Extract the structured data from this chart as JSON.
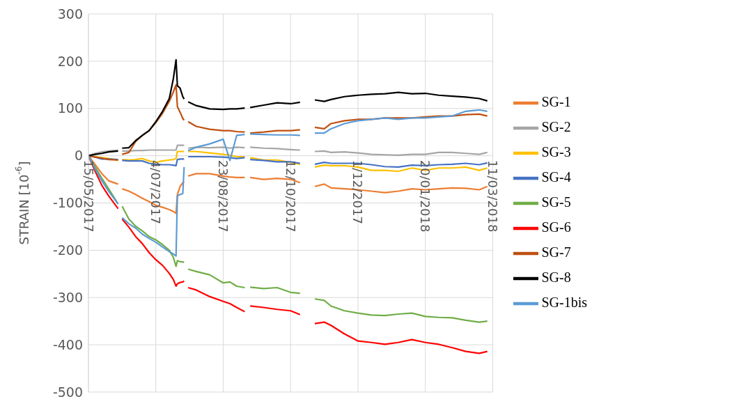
{
  "chart_data": {
    "type": "line",
    "ylabel": "STRAIN [10$^{-6}$]",
    "x": [
      "2017-05-15",
      "2017-05-20",
      "2017-05-25",
      "2017-05-30",
      "2017-06-06",
      "2017-06-07",
      "2017-06-09",
      "2017-06-14",
      "2017-06-19",
      "2017-06-24",
      "2017-06-29",
      "2017-07-04",
      "2017-07-09",
      "2017-07-14",
      "2017-07-17",
      "2017-07-19",
      "2017-07-20",
      "2017-07-22",
      "2017-07-24",
      "2017-07-25",
      "2017-07-26",
      "2017-07-28",
      "2017-08-03",
      "2017-08-13",
      "2017-08-23",
      "2017-08-28",
      "2017-09-02",
      "2017-09-08",
      "2017-09-10",
      "2017-09-12",
      "2017-09-22",
      "2017-10-02",
      "2017-10-12",
      "2017-10-19",
      "2017-10-24",
      "2017-10-30",
      "2017-11-06",
      "2017-11-11",
      "2017-11-21",
      "2017-12-01",
      "2017-12-11",
      "2017-12-21",
      "2017-12-31",
      "2018-01-10",
      "2018-01-20",
      "2018-01-30",
      "2018-02-09",
      "2018-02-19",
      "2018-03-01",
      "2018-03-07"
    ],
    "series": [
      {
        "name": "SG-1",
        "color": "#ed7d31",
        "values": [
          0,
          -19,
          -38,
          -53,
          -60,
          null,
          -70,
          -75,
          -82,
          -90,
          -97,
          -105,
          -109,
          -114,
          -118,
          -122,
          -82,
          -65,
          -57,
          -55,
          null,
          -43,
          -38,
          -38,
          -43,
          -45,
          -46,
          -46,
          null,
          -46,
          -50,
          -48,
          -50,
          -57,
          null,
          -65,
          -60,
          -68,
          -70,
          -72,
          -75,
          -78,
          -75,
          -70,
          -72,
          -70,
          -68,
          -69,
          -72,
          -65
        ]
      },
      {
        "name": "SG-2",
        "color": "#a5a5a5",
        "values": [
          0,
          5,
          8,
          10,
          12,
          null,
          10,
          10,
          11,
          11,
          12,
          12,
          12,
          12,
          12,
          12,
          22,
          22,
          22,
          22,
          null,
          16,
          18,
          17,
          18,
          16,
          18,
          17,
          null,
          18,
          16,
          15,
          13,
          12,
          null,
          9,
          10,
          7,
          8,
          6,
          3,
          2,
          1,
          3,
          3,
          7,
          7,
          5,
          3,
          7
        ]
      },
      {
        "name": "SG-3",
        "color": "#ffc000",
        "values": [
          0,
          -2,
          -4,
          -6,
          -10,
          null,
          -8,
          -9,
          -8,
          -6,
          -11,
          -14,
          -11,
          -9,
          -8,
          -6,
          9,
          9,
          9,
          9,
          null,
          9,
          9,
          6,
          3,
          1,
          -2,
          -2,
          null,
          -4,
          -9,
          -9,
          -14,
          -18,
          null,
          -24,
          -20,
          -21,
          -21,
          -24,
          -31,
          -31,
          -33,
          -26,
          -31,
          -26,
          -26,
          -24,
          -31,
          -26
        ]
      },
      {
        "name": "SG-4",
        "color": "#4472c4",
        "values": [
          0,
          -3,
          -7,
          -7,
          -8,
          null,
          -10,
          -11,
          -11,
          -11,
          -16,
          -18,
          -19,
          -19,
          -20,
          -21,
          -8,
          -7,
          -7,
          -7,
          null,
          -2,
          -2,
          -2,
          -3,
          -4,
          -6,
          -4,
          null,
          -8,
          -10,
          -13,
          -13,
          -16,
          null,
          -18,
          -14,
          -16,
          -16,
          -16,
          -19,
          -23,
          -24,
          -20,
          -21,
          -19,
          -18,
          -16,
          -19,
          -15
        ]
      },
      {
        "name": "SG-5",
        "color": "#70ad47",
        "values": [
          0,
          -24,
          -48,
          -70,
          -102,
          null,
          -107,
          -134,
          -149,
          -159,
          -171,
          -178,
          -188,
          -200,
          -215,
          -234,
          -222,
          -224,
          -225,
          -225,
          null,
          -240,
          -245,
          -252,
          -269,
          -267,
          -276,
          -279,
          null,
          -278,
          -281,
          -279,
          -289,
          -291,
          null,
          -303,
          -306,
          -318,
          -328,
          -333,
          -337,
          -338,
          -335,
          -333,
          -340,
          -342,
          -343,
          -348,
          -352,
          -350
        ]
      },
      {
        "name": "SG-6",
        "color": "#ff0000",
        "values": [
          0,
          -33,
          -63,
          -85,
          -112,
          null,
          -134,
          -151,
          -171,
          -186,
          -205,
          -220,
          -232,
          -249,
          -262,
          -276,
          -271,
          -268,
          -267,
          -265,
          null,
          -279,
          -284,
          -298,
          -308,
          -313,
          -321,
          -330,
          null,
          -318,
          -321,
          -325,
          -328,
          -336,
          null,
          -355,
          -352,
          -359,
          -377,
          -392,
          -395,
          -399,
          -395,
          -389,
          -395,
          -399,
          -406,
          -414,
          -418,
          -414
        ]
      },
      {
        "name": "SG-7",
        "color": "#c0500f",
        "values": [
          0,
          -3,
          -5,
          -8,
          -9,
          null,
          3,
          7,
          30,
          43,
          53,
          70,
          90,
          115,
          135,
          150,
          104,
          92,
          79,
          75,
          null,
          72,
          62,
          56,
          53,
          53,
          51,
          50,
          null,
          48,
          50,
          53,
          53,
          55,
          null,
          60,
          57,
          68,
          74,
          77,
          77,
          80,
          80,
          80,
          82,
          84,
          84,
          87,
          88,
          84
        ]
      },
      {
        "name": "SG-8",
        "color": "#000000",
        "values": [
          0,
          3,
          5,
          8,
          10,
          null,
          16,
          17,
          32,
          43,
          53,
          72,
          94,
          121,
          163,
          203,
          148,
          143,
          125,
          120,
          null,
          114,
          106,
          99,
          98,
          99,
          99,
          101,
          null,
          102,
          107,
          112,
          110,
          113,
          null,
          118,
          115,
          119,
          125,
          128,
          130,
          131,
          134,
          131,
          132,
          128,
          126,
          124,
          121,
          116
        ]
      },
      {
        "name": "SG-1bis",
        "color": "#5b9bd5",
        "values": [
          0,
          -28,
          -53,
          -75,
          -102,
          null,
          -131,
          -144,
          -153,
          -166,
          -175,
          -183,
          -193,
          -203,
          -208,
          -212,
          -85,
          -82,
          -80,
          -24,
          null,
          11,
          18,
          25,
          35,
          -10,
          43,
          45,
          null,
          46,
          45,
          44,
          44,
          43,
          null,
          48,
          48,
          57,
          68,
          74,
          77,
          80,
          77,
          80,
          80,
          82,
          84,
          94,
          97,
          94
        ]
      }
    ],
    "xlim": [
      "2017-05-15",
      "2018-03-11"
    ],
    "xticks": [
      {
        "value": "2017-05-15",
        "label": "15/05/2017"
      },
      {
        "value": "2017-07-04",
        "label": "4/07/2017"
      },
      {
        "value": "2017-08-23",
        "label": "23/08/2017"
      },
      {
        "value": "2017-10-12",
        "label": "12/10/2017"
      },
      {
        "value": "2017-12-01",
        "label": "1/12/2017"
      },
      {
        "value": "2018-01-20",
        "label": "20/01/2018"
      },
      {
        "value": "2018-03-11",
        "label": "11/03/2018"
      }
    ],
    "ylim": [
      -500,
      300
    ],
    "yticks": [
      -500,
      -400,
      -300,
      -200,
      -100,
      0,
      100,
      200,
      300
    ],
    "grid": true,
    "legend": "right"
  }
}
